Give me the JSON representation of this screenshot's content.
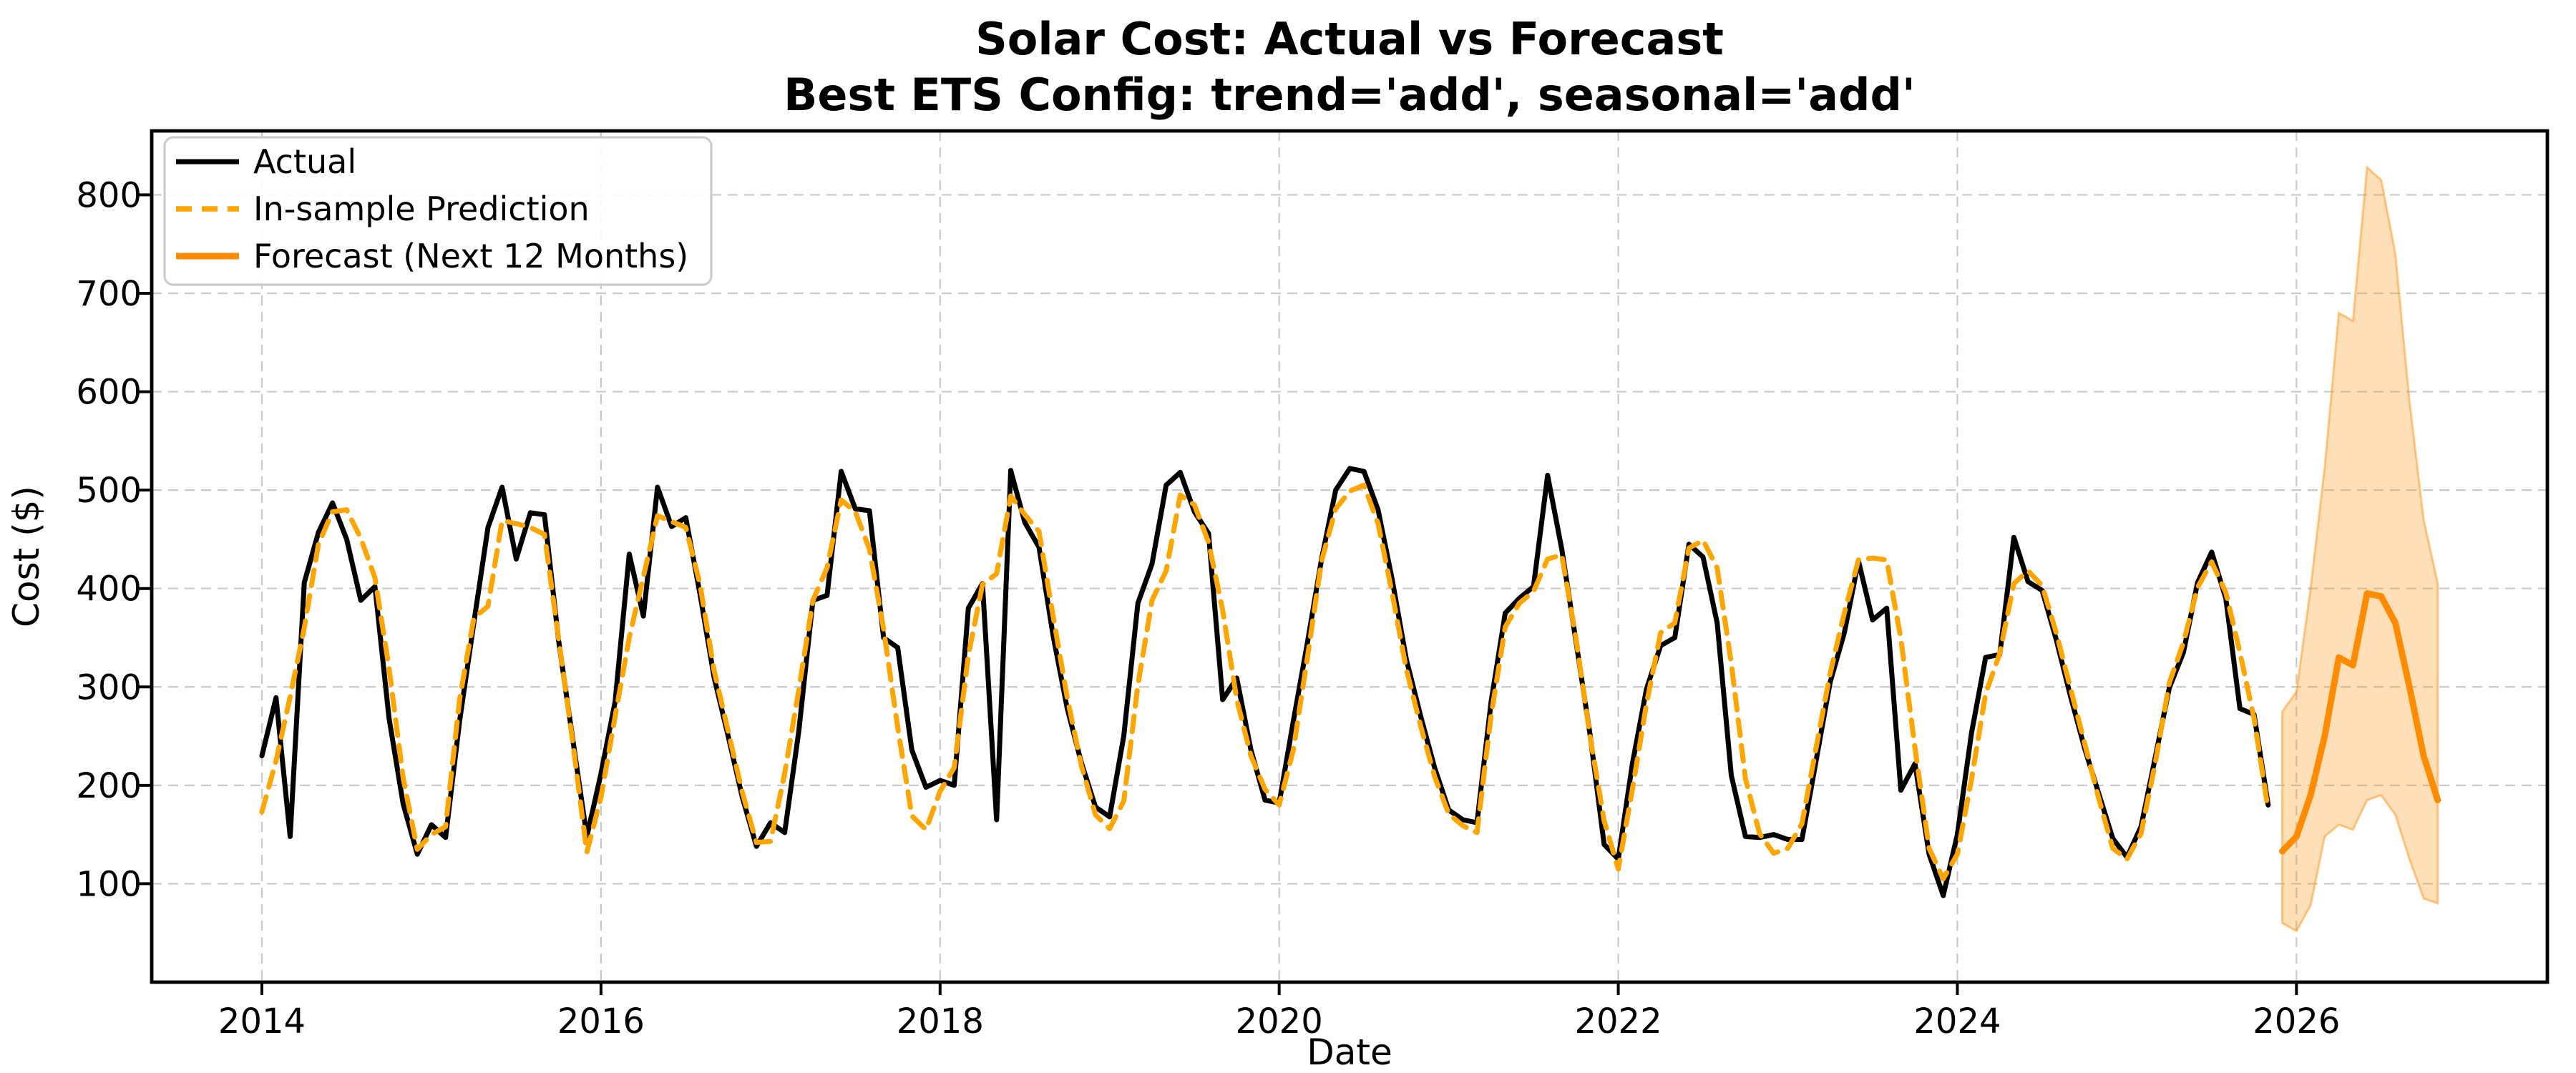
{
  "figure": {
    "background": "#ffffff",
    "title": "Solar Cost: Actual vs Forecast",
    "subtitle": "Best ETS Config: trend='add', seasonal='add'"
  },
  "axes": {
    "xlabel": "Date",
    "ylabel": "Cost ($)"
  },
  "legend": {
    "position": "upper left",
    "items": [
      {
        "label": "Actual",
        "swatch": "solid-line",
        "color": "#000000"
      },
      {
        "label": "In-sample Prediction",
        "swatch": "dashed-line",
        "color": "#FFA500"
      },
      {
        "label": "Forecast (Next 12 Months)",
        "swatch": "solid-line",
        "color": "#FF8C00"
      }
    ]
  },
  "colors": {
    "actual": "#000000",
    "prediction": "#FFA500",
    "forecast": "#FF8C00",
    "confidence_band_fill": "#FF8C00",
    "confidence_band_opacity": 0.28,
    "grid": "#c9c9c9",
    "axis_border": "#000000"
  },
  "chart_data": {
    "type": "line",
    "title": "Solar Cost: Actual vs Forecast",
    "subtitle": "Best ETS Config: trend='add', seasonal='add'",
    "xlabel": "Date",
    "ylabel": "Cost ($)",
    "frequency": "monthly",
    "grid": "dashed, both axes",
    "legend_position": "upper left",
    "xlim": [
      2013.35,
      2027.48
    ],
    "ylim": [
      0,
      865
    ],
    "x_tick_values": [
      2014,
      2016,
      2018,
      2020,
      2022,
      2024,
      2026
    ],
    "x_tick_labels": [
      "2014",
      "2016",
      "2018",
      "2020",
      "2022",
      "2024",
      "2026"
    ],
    "y_tick_values": [
      100,
      200,
      300,
      400,
      500,
      600,
      700,
      800
    ],
    "series": [
      {
        "name": "Actual",
        "color": "#000000",
        "style": "solid",
        "line_width": 3.5,
        "start": "2014-01",
        "values": [
          230,
          289,
          148,
          406,
          457,
          487,
          450,
          388,
          402,
          268,
          181,
          130,
          160,
          147,
          266,
          365,
          462,
          503,
          430,
          477,
          475,
          347,
          247,
          148,
          212,
          285,
          435,
          372,
          503,
          463,
          472,
          395,
          310,
          250,
          188,
          138,
          162,
          152,
          255,
          388,
          393,
          519,
          481,
          479,
          350,
          340,
          236,
          198,
          205,
          200,
          380,
          405,
          165,
          520,
          467,
          442,
          352,
          278,
          223,
          178,
          168,
          250,
          385,
          425,
          505,
          518,
          478,
          456,
          287,
          309,
          236,
          185,
          182,
          265,
          345,
          430,
          500,
          522,
          519,
          480,
          409,
          328,
          271,
          218,
          175,
          165,
          162,
          285,
          375,
          390,
          402,
          515,
          440,
          347,
          252,
          140,
          125,
          222,
          298,
          342,
          350,
          445,
          432,
          365,
          210,
          148,
          147,
          150,
          145,
          145,
          225,
          305,
          355,
          428,
          368,
          380,
          195,
          222,
          130,
          88,
          150,
          253,
          330,
          333,
          452,
          407,
          398,
          348,
          291,
          238,
          192,
          146,
          127,
          158,
          228,
          299,
          335,
          406,
          437,
          390,
          278,
          272,
          180
        ]
      },
      {
        "name": "In-sample Prediction",
        "color": "#FFA500",
        "style": "dashed",
        "line_width": 3.5,
        "start": "2014-01",
        "values": [
          173,
          225,
          290,
          360,
          445,
          478,
          480,
          451,
          411,
          319,
          207,
          135,
          150,
          158,
          288,
          370,
          382,
          469,
          466,
          462,
          455,
          349,
          244,
          132,
          188,
          270,
          350,
          412,
          474,
          468,
          462,
          405,
          317,
          255,
          193,
          142,
          143,
          212,
          297,
          388,
          421,
          490,
          478,
          440,
          359,
          259,
          169,
          155,
          194,
          218,
          332,
          404,
          415,
          494,
          475,
          458,
          372,
          289,
          220,
          170,
          156,
          184,
          302,
          388,
          418,
          495,
          485,
          447,
          378,
          287,
          230,
          196,
          180,
          236,
          330,
          428,
          481,
          499,
          505,
          466,
          395,
          318,
          261,
          209,
          171,
          159,
          152,
          271,
          361,
          385,
          397,
          430,
          434,
          350,
          250,
          164,
          115,
          196,
          283,
          355,
          365,
          441,
          449,
          421,
          324,
          207,
          151,
          131,
          136,
          161,
          238,
          314,
          375,
          429,
          431,
          429,
          349,
          238,
          136,
          105,
          130,
          206,
          293,
          334,
          405,
          418,
          403,
          355,
          299,
          243,
          187,
          136,
          125,
          151,
          222,
          304,
          345,
          401,
          427,
          396,
          335,
          268,
          175
        ]
      },
      {
        "name": "Forecast (Next 12 Months)",
        "color": "#FF8C00",
        "style": "solid",
        "line_width": 4.5,
        "start": "2025-12",
        "values": [
          133,
          148,
          190,
          250,
          330,
          322,
          395,
          392,
          365,
          300,
          230,
          185
        ]
      },
      {
        "name": "Forecast confidence interval",
        "type": "band",
        "color": "#FF8C00",
        "fill_opacity": 0.28,
        "edge_opacity": 0.45,
        "start": "2025-12",
        "upper": [
          275,
          295,
          400,
          523,
          680,
          672,
          828,
          815,
          740,
          590,
          470,
          405
        ],
        "lower": [
          60,
          52,
          78,
          148,
          160,
          155,
          185,
          190,
          170,
          125,
          85,
          80
        ]
      }
    ]
  }
}
